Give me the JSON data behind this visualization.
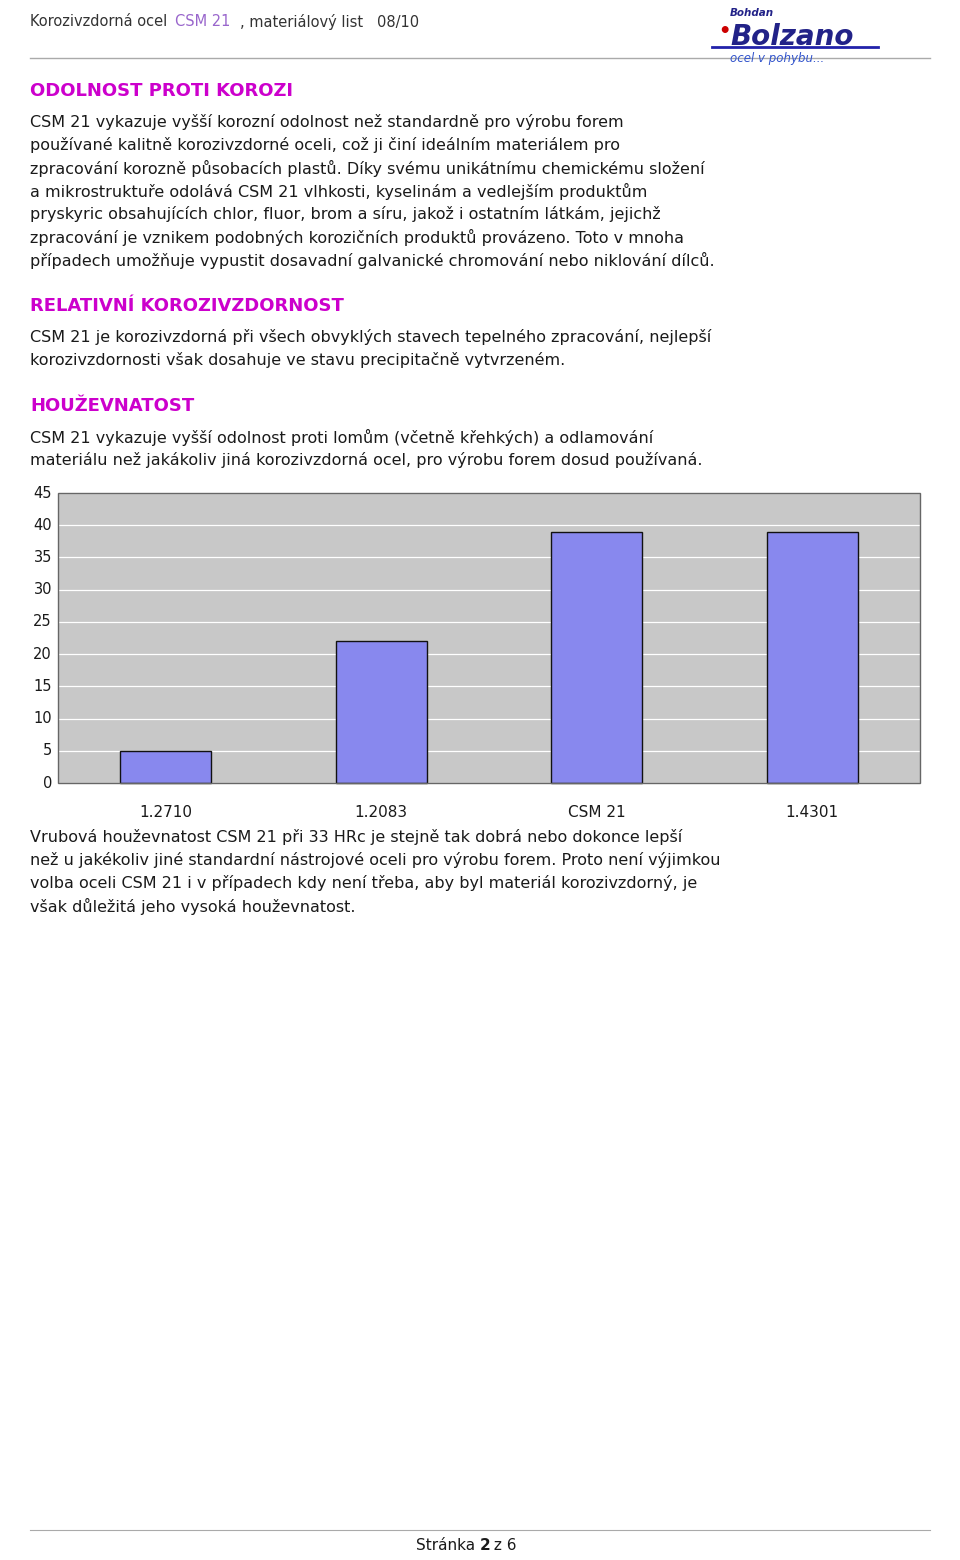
{
  "page_bg": "#ffffff",
  "header_text": "Korozivzdorná ocel ",
  "header_csm": "CSM 21",
  "header_rest": ", materiálový list   08/10",
  "header_text_color": "#333333",
  "header_csm_color": "#9966cc",
  "section1_title": "ODOLNOST PROTI KOROZI",
  "section1_title_color": "#cc00cc",
  "section1_lines": [
    "CSM 21 vykazuje vyšší korozní odolnost než standardně pro výrobu forem",
    "používané kalitně korozivzdorné oceli, což ji činí ideálním materiálem pro",
    "zpracování korozně působacích plastů. Díky svému unikátnímu chemickému složení",
    "a mikrostruktuře odolává CSM 21 vlhkosti, kyselinám a vedlejším produktům",
    "pryskyric obsahujících chlor, fluor, brom a síru, jakož i ostatním látkám, jejichž",
    "zpracování je vznikem podobných korozičních produktů provázeno. Toto v mnoha",
    "případech umožňuje vypustit dosavadní galvanické chromování nebo niklování dílců."
  ],
  "section2_title": "RELATIVNÍ KOROZIVZDORNOST",
  "section2_title_color": "#cc00cc",
  "section2_lines": [
    "CSM 21 je korozivzdorná při všech obvyklých stavech tepelného zpracování, nejlepší",
    "korozivzdornosti však dosahuje ve stavu precipitačně vytvrzeném."
  ],
  "section3_title": "HOUŽEVNATOST",
  "section3_title_color": "#cc00cc",
  "section3_lines": [
    "CSM 21 vykazuje vyšší odolnost proti lomům (včetně křehkých) a odlamování",
    "materiálu než jakákoliv jiná korozivzdorná ocel, pro výrobu forem dosud používaná."
  ],
  "bar_categories": [
    "1.2710",
    "1.2083",
    "CSM 21",
    "1.4301"
  ],
  "bar_values": [
    5,
    22,
    39,
    39
  ],
  "bar_color": "#8888ee",
  "bar_edge_color": "#111111",
  "bar_bg": "#c8c8c8",
  "chart_yticks": [
    0,
    5,
    10,
    15,
    20,
    25,
    30,
    35,
    40,
    45
  ],
  "chart_grid_color": "#ffffff",
  "caption_lines": [
    "Vrubová houževnatost CSM 21 při 33 HRc je stejně tak dobrá nebo dokonce lepší",
    "než u jakékoliv jiné standardní nástrojové oceli pro výrobu forem. Proto není výjimkou",
    "volba oceli CSM 21 i v případech kdy není třeba, aby byl materiál korozivzdorný, je",
    "však důležitá jeho vysoká houževnatost."
  ],
  "footer_pre": "Stránka ",
  "footer_bold": "2",
  "footer_post": " z 6",
  "text_color": "#1a1a1a",
  "body_fontsize": 11.5,
  "section_fontsize": 13,
  "header_fontsize": 10.5
}
